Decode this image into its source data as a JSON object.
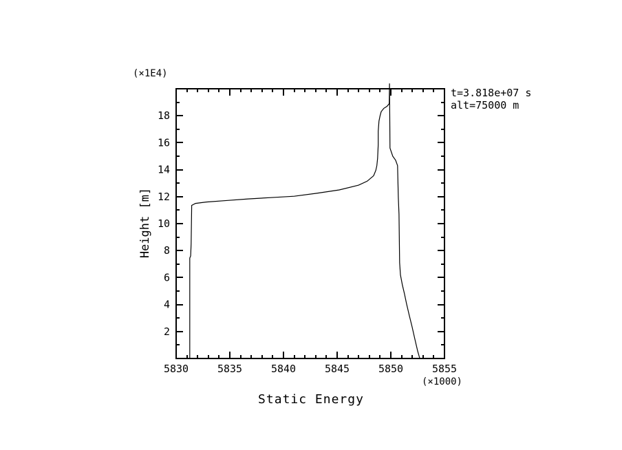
{
  "colors": {
    "background": "#ffffff",
    "foreground": "#000000"
  },
  "annotations": {
    "line1": "t=3.818e+07 s",
    "line2": "alt=75000 m"
  },
  "chart_data": {
    "type": "line",
    "title": "",
    "xlabel": "Static Energy",
    "ylabel": "Height [m]",
    "grid": false,
    "legend": "none",
    "x_axis": {
      "min": 5830,
      "max": 5855,
      "major_tick_values": [
        5830,
        5835,
        5840,
        5845,
        5850,
        5855
      ],
      "tick_labels": [
        "5830",
        "5835",
        "5840",
        "5845",
        "5850",
        "5855"
      ],
      "minor_tick_step": 1,
      "scale_note": "(×1000)"
    },
    "y_axis": {
      "min": 0,
      "max": 20,
      "major_tick_values": [
        2,
        4,
        6,
        8,
        10,
        12,
        14,
        16,
        18
      ],
      "tick_labels": [
        "2",
        "4",
        "6",
        "8",
        "10",
        "12",
        "14",
        "16",
        "18"
      ],
      "minor_tick_step": 1,
      "scale_note": "(×1E4)"
    },
    "series": [
      {
        "name": "static-energy-profile",
        "color": "#000000",
        "points": [
          [
            5831.27,
            0.0
          ],
          [
            5831.27,
            7.45
          ],
          [
            5831.35,
            7.6
          ],
          [
            5831.4,
            8.5
          ],
          [
            5831.45,
            11.35
          ],
          [
            5831.8,
            11.5
          ],
          [
            5832.8,
            11.6
          ],
          [
            5834.8,
            11.72
          ],
          [
            5836.7,
            11.83
          ],
          [
            5838.8,
            11.93
          ],
          [
            5841.0,
            12.03
          ],
          [
            5843.1,
            12.25
          ],
          [
            5845.2,
            12.5
          ],
          [
            5847.0,
            12.85
          ],
          [
            5847.8,
            13.15
          ],
          [
            5848.4,
            13.55
          ],
          [
            5848.6,
            13.95
          ],
          [
            5848.7,
            14.3
          ],
          [
            5848.77,
            14.85
          ],
          [
            5848.83,
            15.85
          ],
          [
            5848.83,
            16.85
          ],
          [
            5848.9,
            17.6
          ],
          [
            5849.0,
            18.0
          ],
          [
            5849.1,
            18.3
          ],
          [
            5849.35,
            18.55
          ],
          [
            5849.65,
            18.7
          ],
          [
            5849.85,
            18.9
          ],
          [
            5849.88,
            20.4
          ],
          [
            5849.92,
            15.6
          ],
          [
            5850.18,
            15.0
          ],
          [
            5850.45,
            14.7
          ],
          [
            5850.63,
            14.3
          ],
          [
            5850.7,
            11.95
          ],
          [
            5850.76,
            10.7
          ],
          [
            5850.82,
            7.1
          ],
          [
            5850.9,
            6.2
          ],
          [
            5851.08,
            5.45
          ],
          [
            5851.27,
            4.8
          ],
          [
            5851.47,
            4.05
          ],
          [
            5851.72,
            3.2
          ],
          [
            5851.98,
            2.35
          ],
          [
            5852.24,
            1.45
          ],
          [
            5852.5,
            0.55
          ],
          [
            5852.7,
            0.0
          ]
        ]
      }
    ]
  }
}
